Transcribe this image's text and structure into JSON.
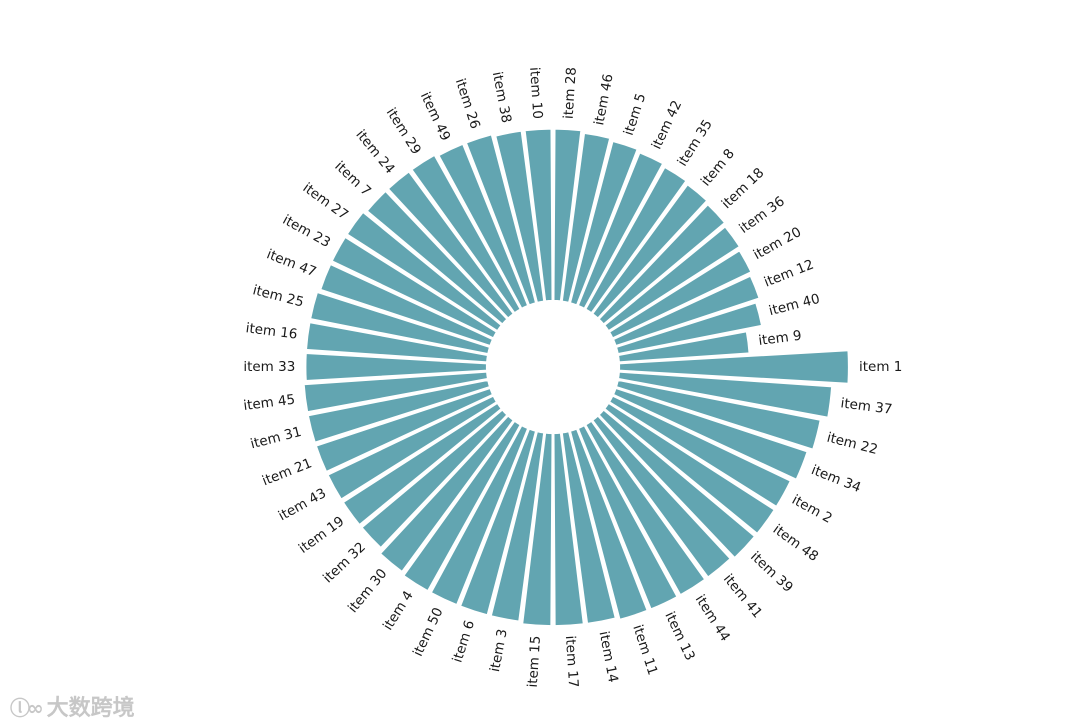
{
  "chart_data": {
    "type": "bar",
    "subtype": "circular-barplot",
    "title": "",
    "bar_color": "#62a5b1",
    "inner_radius_ratio": 0.287,
    "categories": [
      "item 1",
      "item 37",
      "item 22",
      "item 34",
      "item 2",
      "item 48",
      "item 39",
      "item 41",
      "item 44",
      "item 13",
      "item 11",
      "item 14",
      "item 17",
      "item 15",
      "item 3",
      "item 6",
      "item 50",
      "item 4",
      "item 30",
      "item 32",
      "item 19",
      "item 43",
      "item 21",
      "item 31",
      "item 45",
      "item 33",
      "item 16",
      "item 25",
      "item 47",
      "item 23",
      "item 27",
      "item 7",
      "item 24",
      "item 29",
      "item 49",
      "item 26",
      "item 38",
      "item 10",
      "item 28",
      "item 46",
      "item 5",
      "item 42",
      "item 35",
      "item 8",
      "item 18",
      "item 36",
      "item 20",
      "item 12",
      "item 40",
      "item 9"
    ],
    "values": [
      1.0,
      0.93,
      0.9,
      0.88,
      0.86,
      0.86,
      0.86,
      0.85,
      0.85,
      0.85,
      0.85,
      0.84,
      0.84,
      0.84,
      0.83,
      0.83,
      0.83,
      0.83,
      0.82,
      0.8,
      0.8,
      0.8,
      0.8,
      0.8,
      0.8,
      0.79,
      0.79,
      0.79,
      0.78,
      0.78,
      0.78,
      0.77,
      0.77,
      0.77,
      0.76,
      0.76,
      0.75,
      0.75,
      0.75,
      0.74,
      0.73,
      0.72,
      0.71,
      0.7,
      0.69,
      0.68,
      0.67,
      0.66,
      0.64,
      0.57
    ],
    "ylim": [
      0,
      1.0
    ]
  },
  "watermark": {
    "text": "大数跨境"
  }
}
